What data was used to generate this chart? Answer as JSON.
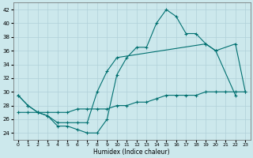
{
  "xlabel": "Humidex (Indice chaleur)",
  "xlim": [
    -0.5,
    23.5
  ],
  "ylim": [
    23,
    43
  ],
  "yticks": [
    24,
    26,
    28,
    30,
    32,
    34,
    36,
    38,
    40,
    42
  ],
  "xticks": [
    0,
    1,
    2,
    3,
    4,
    5,
    6,
    7,
    8,
    9,
    10,
    11,
    12,
    13,
    14,
    15,
    16,
    17,
    18,
    19,
    20,
    21,
    22,
    23
  ],
  "bg_color": "#cce8ec",
  "grid_color": "#b0d0d8",
  "line_color": "#007070",
  "lines": [
    {
      "x": [
        0,
        1,
        2,
        3,
        4,
        5,
        6,
        7,
        8,
        9,
        10,
        11,
        12,
        13,
        14,
        15,
        16,
        17,
        18,
        19,
        20,
        22
      ],
      "y": [
        29.5,
        28,
        27,
        26.5,
        25,
        25,
        24.5,
        24,
        24,
        26,
        32.5,
        35,
        36.5,
        36.5,
        40,
        42,
        41,
        38.5,
        38.5,
        37,
        36,
        29.5
      ]
    },
    {
      "x": [
        0,
        1,
        2,
        3,
        4,
        5,
        6,
        7,
        8,
        9,
        10,
        19,
        20,
        22,
        23
      ],
      "y": [
        29.5,
        28,
        27,
        26.5,
        25.5,
        25.5,
        25.5,
        25.5,
        30,
        33,
        35,
        37,
        36,
        37,
        30
      ]
    },
    {
      "x": [
        0,
        1,
        2,
        3,
        4,
        5,
        6,
        7,
        8,
        9,
        10,
        11,
        12,
        13,
        14,
        15,
        16,
        17,
        18,
        19,
        20,
        21,
        22,
        23
      ],
      "y": [
        27,
        27,
        27,
        27,
        27,
        27,
        27.5,
        27.5,
        27.5,
        27.5,
        28,
        28,
        28.5,
        28.5,
        29,
        29.5,
        29.5,
        29.5,
        29.5,
        30,
        30,
        30,
        30,
        30
      ]
    }
  ]
}
